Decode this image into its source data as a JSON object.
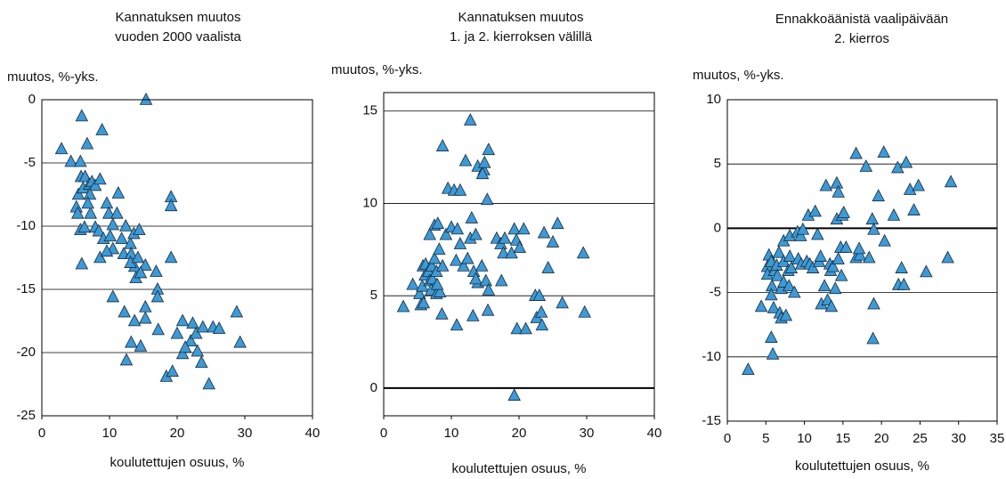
{
  "chart_data": [
    {
      "type": "scatter",
      "title": [
        "Kannatuksen muutos",
        "vuoden 2000 vaalista"
      ],
      "ylabel": "muutos, %-yks.",
      "xlabel": "koulutettujen osuus, %",
      "xlim": [
        0,
        40
      ],
      "ylim": [
        -25,
        0
      ],
      "xticks": [
        0,
        10,
        20,
        30,
        40
      ],
      "yticks": [
        -25,
        -20,
        -15,
        -10,
        -5,
        0
      ],
      "grid": true,
      "color": "#3c9ad6",
      "x": [
        2.9,
        4.3,
        5.7,
        5.9,
        6.7,
        8.9,
        15.4,
        5.1,
        5.3,
        5.4,
        5.8,
        6.1,
        6.4,
        7.0,
        7.4,
        7.9,
        8.6,
        7.1,
        7.2,
        6.8,
        5.7,
        6.3,
        7.9,
        8.4,
        8.6,
        9.1,
        10.1,
        9.6,
        9.9,
        11.1,
        11.3,
        10.5,
        10.5,
        9.6,
        5.9,
        12.1,
        12.4,
        11.8,
        13.1,
        13.2,
        13.6,
        14.4,
        13.7,
        13.1,
        14.2,
        15.3,
        13.9,
        14.6,
        16.9,
        17.1,
        17.1,
        10.5,
        12.2,
        15.3,
        15.3,
        13.7,
        13.2,
        14.6,
        17.2,
        12.5,
        19.1,
        19.1,
        19.1,
        18.4,
        19.3,
        20.0,
        20.8,
        20.8,
        22.0,
        22.3,
        22.8,
        23.0,
        23.8,
        23.6,
        24.7,
        25.3,
        26.2,
        28.8,
        29.3,
        21.2
      ],
      "values": [
        -3.9,
        -4.9,
        -4.9,
        -1.3,
        -3.5,
        -2.4,
        0,
        -8.5,
        -9,
        -7.5,
        -6.1,
        -7,
        -6.1,
        -6.7,
        -6.5,
        -6.8,
        -6.3,
        -7.5,
        -9,
        -8.2,
        -10.3,
        -10.1,
        -10.1,
        -10.4,
        -12.5,
        -11,
        -10.8,
        -8.2,
        -9,
        -9,
        -7.4,
        -9.9,
        -11.8,
        -12,
        -13,
        -12.2,
        -10,
        -11,
        -11.4,
        -12.2,
        -10.6,
        -10.3,
        -13.2,
        -12.9,
        -12.5,
        -13.1,
        -14.1,
        -13.7,
        -13.6,
        -15,
        -15.6,
        -15.6,
        -16.8,
        -16.4,
        -17.3,
        -17.5,
        -19.2,
        -19.5,
        -18.2,
        -20.6,
        -7.7,
        -8.4,
        -12.5,
        -21.9,
        -21.5,
        -18.5,
        -17.5,
        -20.1,
        -19.1,
        -17.7,
        -18.5,
        -19.9,
        -18,
        -20.8,
        -22.5,
        -18,
        -18.1,
        -16.8,
        -19.2,
        -19.6
      ]
    },
    {
      "type": "scatter",
      "title": [
        "Kannatuksen muutos",
        "1. ja 2. kierroksen välillä"
      ],
      "ylabel": "muutos, %-yks.",
      "xlabel": "koulutettujen osuus, %",
      "xlim": [
        0,
        40
      ],
      "ylim": [
        -1.5,
        16
      ],
      "xticks": [
        0,
        10,
        20,
        30,
        40
      ],
      "yticks": [
        0,
        5,
        10,
        15
      ],
      "grid": true,
      "color": "#3c9ad6",
      "x": [
        2.9,
        4.3,
        5.3,
        5.5,
        5.9,
        5.7,
        6.1,
        5.8,
        6.2,
        6.6,
        6.8,
        7.1,
        7.5,
        7.0,
        7.2,
        7.8,
        8.2,
        7.5,
        8.0,
        6.8,
        7.8,
        8.3,
        7.9,
        8.7,
        9.2,
        9.5,
        8.7,
        8.6,
        10.0,
        10.4,
        11.3,
        10.9,
        10.7,
        10.8,
        11.3,
        11.8,
        12.4,
        12.1,
        12.8,
        12.8,
        13.0,
        13.3,
        13.6,
        13.9,
        14.8,
        14.9,
        14.6,
        15.5,
        15.3,
        13.9,
        13.6,
        14.5,
        15.1,
        15.5,
        15.4,
        13.2,
        16.7,
        17.3,
        17.7,
        17.4,
        17.9,
        18.9,
        19.3,
        19.6,
        20.1,
        20.7,
        19.7,
        21.0,
        19.3,
        22.4,
        23.0,
        22.6,
        23.3,
        23.4,
        23.7,
        24.3,
        25.0,
        25.7,
        26.4,
        29.5,
        29.7
      ],
      "values": [
        4.4,
        5.6,
        5.1,
        4.5,
        4.6,
        5.5,
        6.1,
        6.6,
        6.7,
        6.3,
        5.8,
        6.6,
        7.0,
        5.3,
        5.9,
        6.3,
        7.5,
        8.8,
        8.9,
        8.3,
        5.1,
        5.2,
        5.6,
        6.6,
        8.3,
        10.8,
        13.1,
        4.0,
        8.7,
        10.7,
        10.7,
        8.6,
        6.9,
        3.4,
        7.8,
        6.6,
        7.0,
        12.3,
        14.5,
        8.1,
        9.2,
        6.3,
        8.3,
        12.0,
        11.8,
        12.2,
        11.6,
        12.9,
        10.2,
        5.7,
        5.9,
        6.6,
        5.8,
        5.3,
        4.2,
        3.9,
        8.1,
        7.8,
        7.3,
        5.8,
        8.1,
        7.3,
        8.6,
        8.0,
        7.6,
        8.6,
        3.2,
        3.2,
        -0.4,
        5.0,
        5.0,
        3.8,
        4.1,
        3.4,
        8.4,
        6.5,
        7.9,
        8.9,
        4.6,
        7.3,
        4.1
      ]
    },
    {
      "type": "scatter",
      "title": [
        "Ennakkoäänistä vaalipäivään",
        "2. kierros"
      ],
      "ylabel": "muutos, %-yks.",
      "xlabel": "koulutettujen osuus, %",
      "xlim": [
        0,
        35
      ],
      "ylim": [
        -15,
        10
      ],
      "xticks": [
        0,
        5,
        10,
        15,
        20,
        25,
        30,
        35
      ],
      "yticks": [
        -15,
        -10,
        -5,
        0,
        5,
        10
      ],
      "grid": true,
      "color": "#3c9ad6",
      "x": [
        2.7,
        4.4,
        5.2,
        5.2,
        5.4,
        5.7,
        5.8,
        5.7,
        5.7,
        5.9,
        6.1,
        6.4,
        6.5,
        6.0,
        6.8,
        7.0,
        7.3,
        6.7,
        7.3,
        7.3,
        7.0,
        7.6,
        7.9,
        8.0,
        8.1,
        8.1,
        8.3,
        8.7,
        9.1,
        9.2,
        9.5,
        9.6,
        9.8,
        10.3,
        10.5,
        10.7,
        11.1,
        11.4,
        11.7,
        11.9,
        12.1,
        12.2,
        12.6,
        12.8,
        13.0,
        13.3,
        13.4,
        13.5,
        13.7,
        14.0,
        14.2,
        14.4,
        14.2,
        14.4,
        14.9,
        14.7,
        14.8,
        15.1,
        15.4,
        16.7,
        16.7,
        17.2,
        17.1,
        18.0,
        18.4,
        18.8,
        19.0,
        19.0,
        18.9,
        19.6,
        20.3,
        20.4,
        21.6,
        22.1,
        22.2,
        22.6,
        22.9,
        23.2,
        23.7,
        24.2,
        24.8,
        25.8,
        28.6,
        29.0
      ],
      "values": [
        -11.0,
        -6.1,
        -3.0,
        -3.6,
        -2.1,
        -2.6,
        -4.5,
        -5.2,
        -8.5,
        -9.8,
        -3.3,
        -2.9,
        -3.7,
        -6.2,
        -6.6,
        -4.7,
        -4.2,
        -1.9,
        -2.6,
        -1.0,
        -7.0,
        -6.8,
        -3.3,
        -4.5,
        -2.2,
        -0.6,
        -3.1,
        -5.0,
        -0.3,
        -2.4,
        -0.6,
        -2.8,
        -0.1,
        -2.6,
        1.0,
        -2.8,
        -3.1,
        1.3,
        -0.5,
        -2.6,
        -2.2,
        -5.9,
        -4.5,
        3.3,
        -5.6,
        -2.8,
        -3.3,
        -6.1,
        -3.0,
        -4.7,
        3.5,
        2.8,
        0.7,
        -2.4,
        1.0,
        -1.5,
        -3.7,
        1.2,
        -1.5,
        5.8,
        -2.3,
        -2.1,
        -1.6,
        4.8,
        -2.3,
        0.7,
        -0.1,
        -5.9,
        -8.6,
        2.5,
        5.9,
        -1.0,
        1.0,
        4.7,
        -4.4,
        -3.1,
        -4.4,
        5.1,
        3.0,
        1.4,
        3.3,
        -3.4,
        -2.3,
        3.6
      ]
    }
  ]
}
